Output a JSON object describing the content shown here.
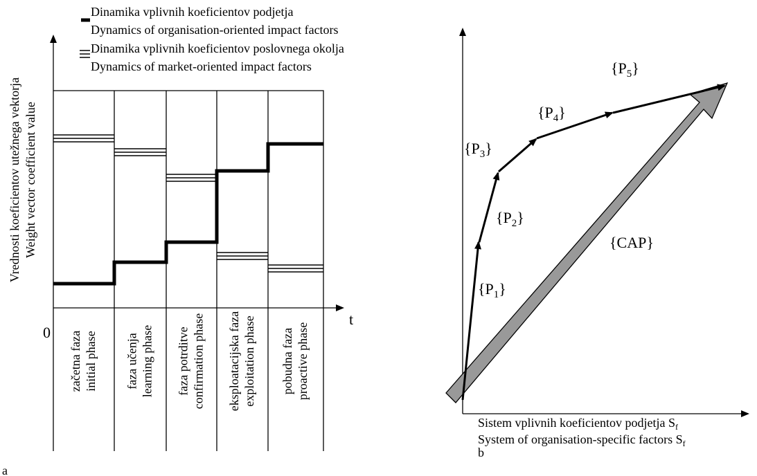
{
  "panel_a": {
    "legend": [
      {
        "line1": "Dinamika vplivnih koeficientov podjetja",
        "line2": "Dynamics of organisation-oriented impact factors"
      },
      {
        "line1": "Dinamika vplivnih koeficientov poslovnega okolja",
        "line2": "Dynamics of market-oriented impact factors"
      }
    ],
    "y_label": [
      "Vrednosti koeficientov utežnega vektorja",
      "Weight vector coefficient value"
    ],
    "origin": "0",
    "x_label": "t",
    "phases": [
      [
        "začetna faza",
        "initial phase"
      ],
      [
        "faza učenja",
        "learning phase"
      ],
      [
        "faza potrditve",
        "confirmation phase"
      ],
      [
        "eksploatacijska faza",
        "exploitation phase"
      ],
      [
        "pobudna faza",
        "proactive phase"
      ]
    ],
    "panel_label": "a"
  },
  "panel_b": {
    "vectors": [
      {
        "text": "{P",
        "sub": "1",
        "end": "}"
      },
      {
        "text": "{P",
        "sub": "2",
        "end": "}"
      },
      {
        "text": "{P",
        "sub": "3",
        "end": "}"
      },
      {
        "text": "{P",
        "sub": "4",
        "end": "}"
      },
      {
        "text": "{P",
        "sub": "5",
        "end": "}"
      }
    ],
    "resultant": "{CAP}",
    "x_label": [
      {
        "text": "Sistem vplivnih koeficientov podjetja S",
        "sub": "f"
      },
      {
        "text": "System of organisation-specific factors  S",
        "sub": "f"
      }
    ],
    "panel_label": "b"
  }
}
